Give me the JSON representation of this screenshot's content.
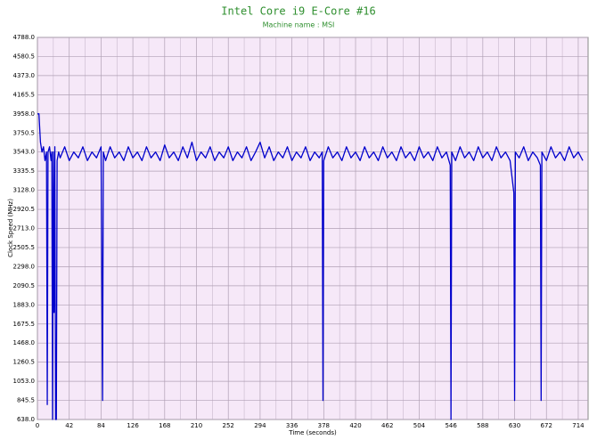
{
  "chart_data": {
    "type": "line",
    "title": "Intel Core i9 E-Core #16",
    "subtitle": "Machine name : MSI",
    "xlabel": "Time (seconds)",
    "ylabel": "Clock Speed (MHz)",
    "xlim": [
      0,
      727
    ],
    "ylim": [
      638,
      4788
    ],
    "xticks": [
      0,
      42,
      84,
      126,
      168,
      210,
      252,
      294,
      336,
      378,
      420,
      462,
      504,
      546,
      588,
      630,
      672,
      714
    ],
    "yticks": [
      {
        "value": 638,
        "label": "638.0"
      },
      {
        "value": 845.5,
        "label": "845.5"
      },
      {
        "value": 1053,
        "label": "1053.0"
      },
      {
        "value": 1260.5,
        "label": "1260.5"
      },
      {
        "value": 1468,
        "label": "1468.0"
      },
      {
        "value": 1675.5,
        "label": "1675.5"
      },
      {
        "value": 1883,
        "label": "1883.0"
      },
      {
        "value": 2090.5,
        "label": "2090.5"
      },
      {
        "value": 2298,
        "label": "2298.0"
      },
      {
        "value": 2505.5,
        "label": "2505.5"
      },
      {
        "value": 2713,
        "label": "2713.0"
      },
      {
        "value": 2920.5,
        "label": "2920.5"
      },
      {
        "value": 3128,
        "label": "3128.0"
      },
      {
        "value": 3335.5,
        "label": "3335.5"
      },
      {
        "value": 3543,
        "label": "3543.0"
      },
      {
        "value": 3750.5,
        "label": "3750.5"
      },
      {
        "value": 3958,
        "label": "3958.0"
      },
      {
        "value": 4165.5,
        "label": "4165.5"
      },
      {
        "value": 4373,
        "label": "4373.0"
      },
      {
        "value": 4580.5,
        "label": "4580.5"
      },
      {
        "value": 4788,
        "label": "4788.0"
      }
    ],
    "grid": true,
    "background": "#f6e8f8",
    "color": "#0000cc",
    "x": [
      0,
      2,
      4,
      6,
      8,
      10,
      12,
      13,
      14,
      16,
      18,
      19,
      20,
      21,
      22,
      23,
      24,
      25,
      26,
      28,
      30,
      36,
      42,
      48,
      54,
      60,
      66,
      72,
      78,
      84,
      86,
      87,
      90,
      96,
      102,
      108,
      114,
      120,
      126,
      132,
      138,
      144,
      150,
      156,
      162,
      168,
      174,
      180,
      186,
      192,
      198,
      204,
      210,
      216,
      222,
      228,
      234,
      240,
      246,
      252,
      258,
      264,
      270,
      276,
      282,
      288,
      294,
      300,
      306,
      312,
      318,
      324,
      330,
      336,
      342,
      348,
      354,
      360,
      366,
      372,
      376,
      377,
      378,
      384,
      390,
      396,
      402,
      408,
      414,
      420,
      426,
      432,
      438,
      444,
      450,
      456,
      462,
      468,
      474,
      480,
      486,
      492,
      498,
      504,
      510,
      516,
      522,
      528,
      534,
      540,
      545,
      546,
      547,
      552,
      558,
      564,
      570,
      576,
      582,
      588,
      594,
      600,
      606,
      612,
      618,
      624,
      629,
      630,
      631,
      636,
      642,
      648,
      654,
      660,
      664,
      665,
      666,
      672,
      678,
      684,
      690,
      696,
      702,
      708,
      714,
      720
    ],
    "values": [
      3958,
      3958,
      3650,
      3543,
      3600,
      3450,
      3543,
      800,
      3543,
      3600,
      3450,
      3543,
      638,
      3543,
      1800,
      3600,
      638,
      638,
      3450,
      3543,
      3480,
      3600,
      3450,
      3543,
      3480,
      3600,
      3450,
      3543,
      3480,
      3600,
      845,
      3543,
      3450,
      3600,
      3480,
      3543,
      3450,
      3600,
      3480,
      3543,
      3450,
      3600,
      3480,
      3543,
      3450,
      3620,
      3480,
      3543,
      3450,
      3600,
      3480,
      3650,
      3450,
      3543,
      3480,
      3600,
      3450,
      3543,
      3480,
      3600,
      3450,
      3543,
      3480,
      3600,
      3450,
      3543,
      3650,
      3480,
      3600,
      3450,
      3543,
      3480,
      3600,
      3450,
      3543,
      3480,
      3600,
      3450,
      3543,
      3480,
      3543,
      845,
      3450,
      3600,
      3480,
      3543,
      3450,
      3600,
      3480,
      3543,
      3450,
      3600,
      3480,
      3543,
      3450,
      3600,
      3480,
      3543,
      3450,
      3600,
      3480,
      3543,
      3450,
      3600,
      3480,
      3543,
      3450,
      3600,
      3480,
      3543,
      3400,
      638,
      3543,
      3450,
      3600,
      3480,
      3543,
      3450,
      3600,
      3480,
      3543,
      3450,
      3600,
      3480,
      3543,
      3450,
      3100,
      845,
      3543,
      3480,
      3600,
      3450,
      3543,
      3480,
      3400,
      845,
      3543,
      3450,
      3600,
      3480,
      3543,
      3450,
      3600,
      3480,
      3543,
      3450
    ]
  }
}
